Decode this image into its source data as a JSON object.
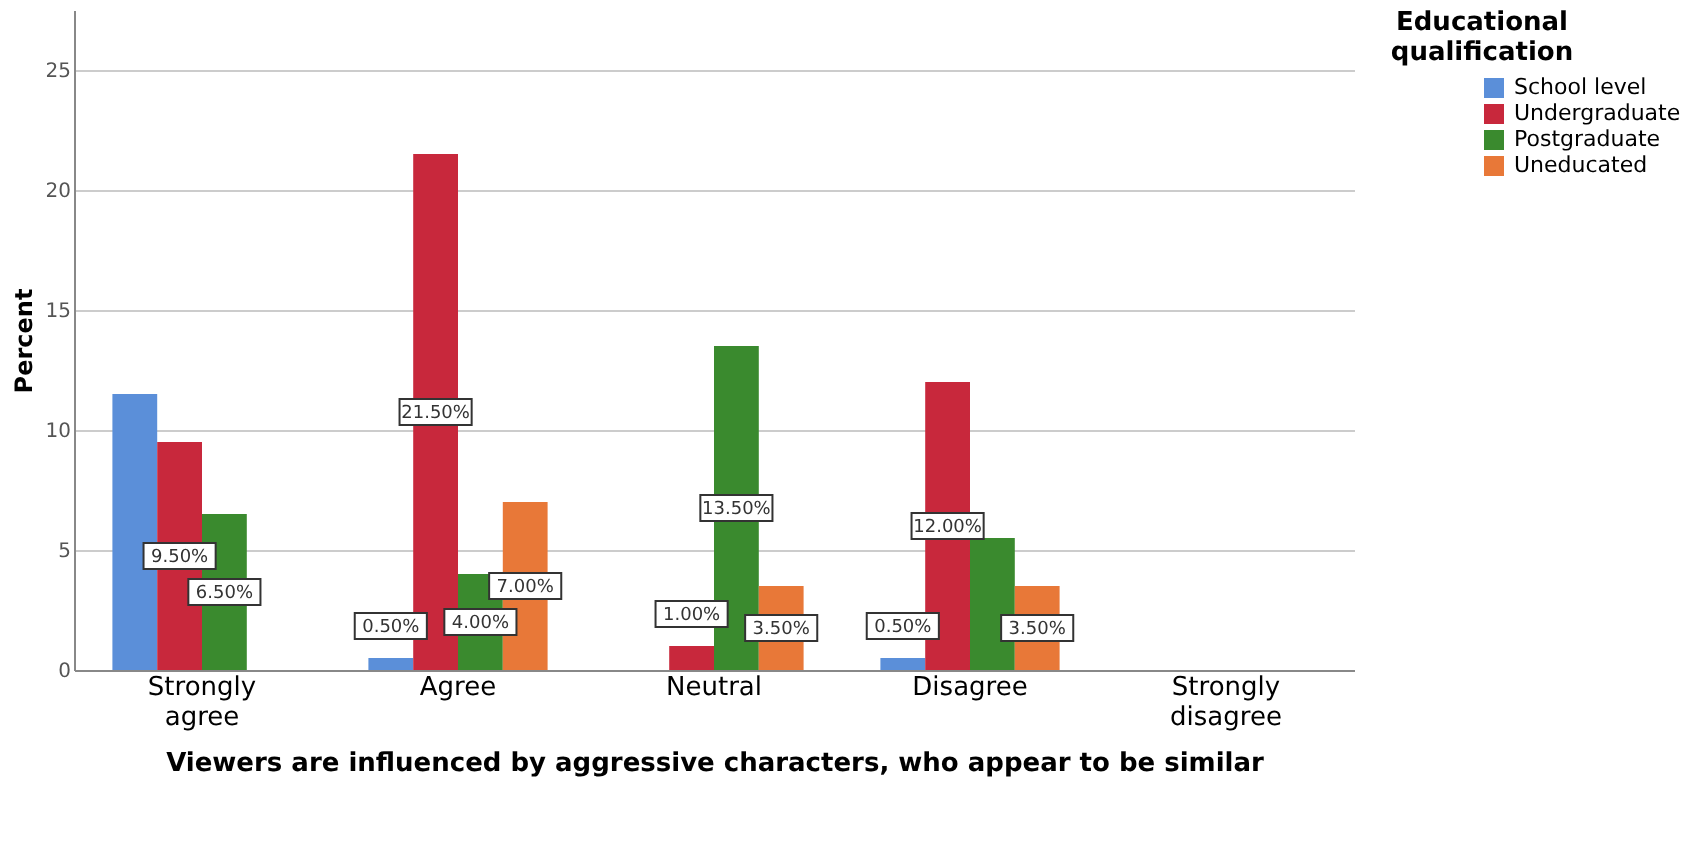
{
  "chart_data": {
    "type": "bar",
    "xlabel": "Viewers are influenced by aggressive characters, who appear to be similar",
    "ylabel": "Percent",
    "legend_title": "Educational qualification",
    "categories": [
      "Strongly agree",
      "Agree",
      "Neutral",
      "Disagree",
      "Strongly disagree"
    ],
    "series": [
      {
        "name": "School level",
        "color": "#5b8fd9",
        "values": [
          11.5,
          0.5,
          null,
          0.5,
          null
        ],
        "value_labels": [
          null,
          "0.50%",
          null,
          "0.50%",
          null
        ]
      },
      {
        "name": "Undergraduate",
        "color": "#c8283c",
        "values": [
          9.5,
          21.5,
          1.0,
          12.0,
          null
        ],
        "value_labels": [
          "9.50%",
          "21.50%",
          "1.00%",
          "12.00%",
          null
        ]
      },
      {
        "name": "Postgraduate",
        "color": "#3a8a2e",
        "values": [
          6.5,
          4.0,
          13.5,
          5.5,
          null
        ],
        "value_labels": [
          "6.50%",
          "4.00%",
          "13.50%",
          null,
          null
        ]
      },
      {
        "name": "Uneducated",
        "color": "#e87838",
        "values": [
          null,
          7.0,
          3.5,
          3.5,
          null
        ],
        "value_labels": [
          null,
          "7.00%",
          "3.50%",
          "3.50%",
          null
        ]
      }
    ],
    "ylim": [
      0,
      27.5
    ],
    "yticks": [
      0,
      5,
      10,
      15,
      20,
      25
    ],
    "grid": "y",
    "legend": "top right"
  }
}
